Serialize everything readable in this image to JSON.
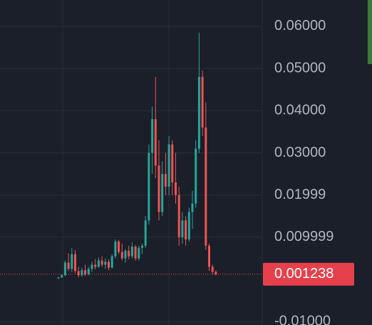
{
  "chart_data": {
    "type": "candlestick",
    "open": [
      0.0003,
      0.0005,
      0.001,
      0.004,
      0.0025,
      0.006,
      0.002,
      0.001,
      0.0022,
      0.0012,
      0.0025,
      0.0035,
      0.003,
      0.0045,
      0.0035,
      0.0042,
      0.0028,
      0.0055,
      0.009,
      0.0065,
      0.005,
      0.0068,
      0.0055,
      0.0078,
      0.005,
      0.0075,
      0.008,
      0.014,
      0.03,
      0.038,
      0.027,
      0.016,
      0.025,
      0.022,
      0.032,
      0.023,
      0.02,
      0.01,
      0.014,
      0.0095,
      0.016,
      0.018,
      0.031,
      0.048,
      0.036,
      0.008,
      0.003,
      0.0018
    ],
    "high": [
      0.0006,
      0.0012,
      0.0045,
      0.0062,
      0.0075,
      0.007,
      0.003,
      0.0028,
      0.0035,
      0.003,
      0.0042,
      0.0048,
      0.0052,
      0.0055,
      0.005,
      0.0048,
      0.006,
      0.0095,
      0.0094,
      0.0085,
      0.0072,
      0.008,
      0.0088,
      0.0082,
      0.008,
      0.0085,
      0.015,
      0.032,
      0.041,
      0.048,
      0.033,
      0.028,
      0.03,
      0.034,
      0.033,
      0.03,
      0.022,
      0.016,
      0.015,
      0.017,
      0.021,
      0.033,
      0.0585,
      0.0495,
      0.042,
      0.0085,
      0.0035,
      0.0022
    ],
    "low": [
      0.0001,
      0.0003,
      0.0008,
      0.002,
      0.0018,
      0.0015,
      0.0005,
      0.0006,
      0.0008,
      0.001,
      0.0018,
      0.0024,
      0.0028,
      0.003,
      0.0025,
      0.0022,
      0.0026,
      0.005,
      0.006,
      0.0045,
      0.004,
      0.0048,
      0.005,
      0.0045,
      0.0045,
      0.006,
      0.0075,
      0.013,
      0.025,
      0.024,
      0.014,
      0.015,
      0.02,
      0.02,
      0.02,
      0.018,
      0.008,
      0.0085,
      0.008,
      0.009,
      0.012,
      0.017,
      0.03,
      0.034,
      0.007,
      0.002,
      0.0012,
      0.001
    ],
    "close": [
      0.0005,
      0.001,
      0.004,
      0.0025,
      0.006,
      0.002,
      0.001,
      0.0022,
      0.0012,
      0.0025,
      0.0035,
      0.003,
      0.0045,
      0.0035,
      0.0042,
      0.0028,
      0.0055,
      0.009,
      0.0065,
      0.005,
      0.0068,
      0.0055,
      0.0078,
      0.005,
      0.0075,
      0.008,
      0.014,
      0.03,
      0.038,
      0.027,
      0.016,
      0.025,
      0.022,
      0.032,
      0.023,
      0.02,
      0.01,
      0.014,
      0.0095,
      0.016,
      0.018,
      0.031,
      0.048,
      0.036,
      0.008,
      0.003,
      0.0018,
      0.0012
    ],
    "up_color": "#26a69a",
    "down_color": "#ef5350",
    "ylim": [
      -0.01079,
      0.06624
    ],
    "yticks": [
      {
        "value": 0.06,
        "label": "0.06000"
      },
      {
        "value": 0.05,
        "label": "0.05000"
      },
      {
        "value": 0.04,
        "label": "0.04000"
      },
      {
        "value": 0.03,
        "label": "0.03000"
      },
      0.01999,
      0.009999,
      {
        "value": -0.01,
        "label": "-0.01000"
      }
    ],
    "grid": true,
    "last_price": 0.001238
  }
}
